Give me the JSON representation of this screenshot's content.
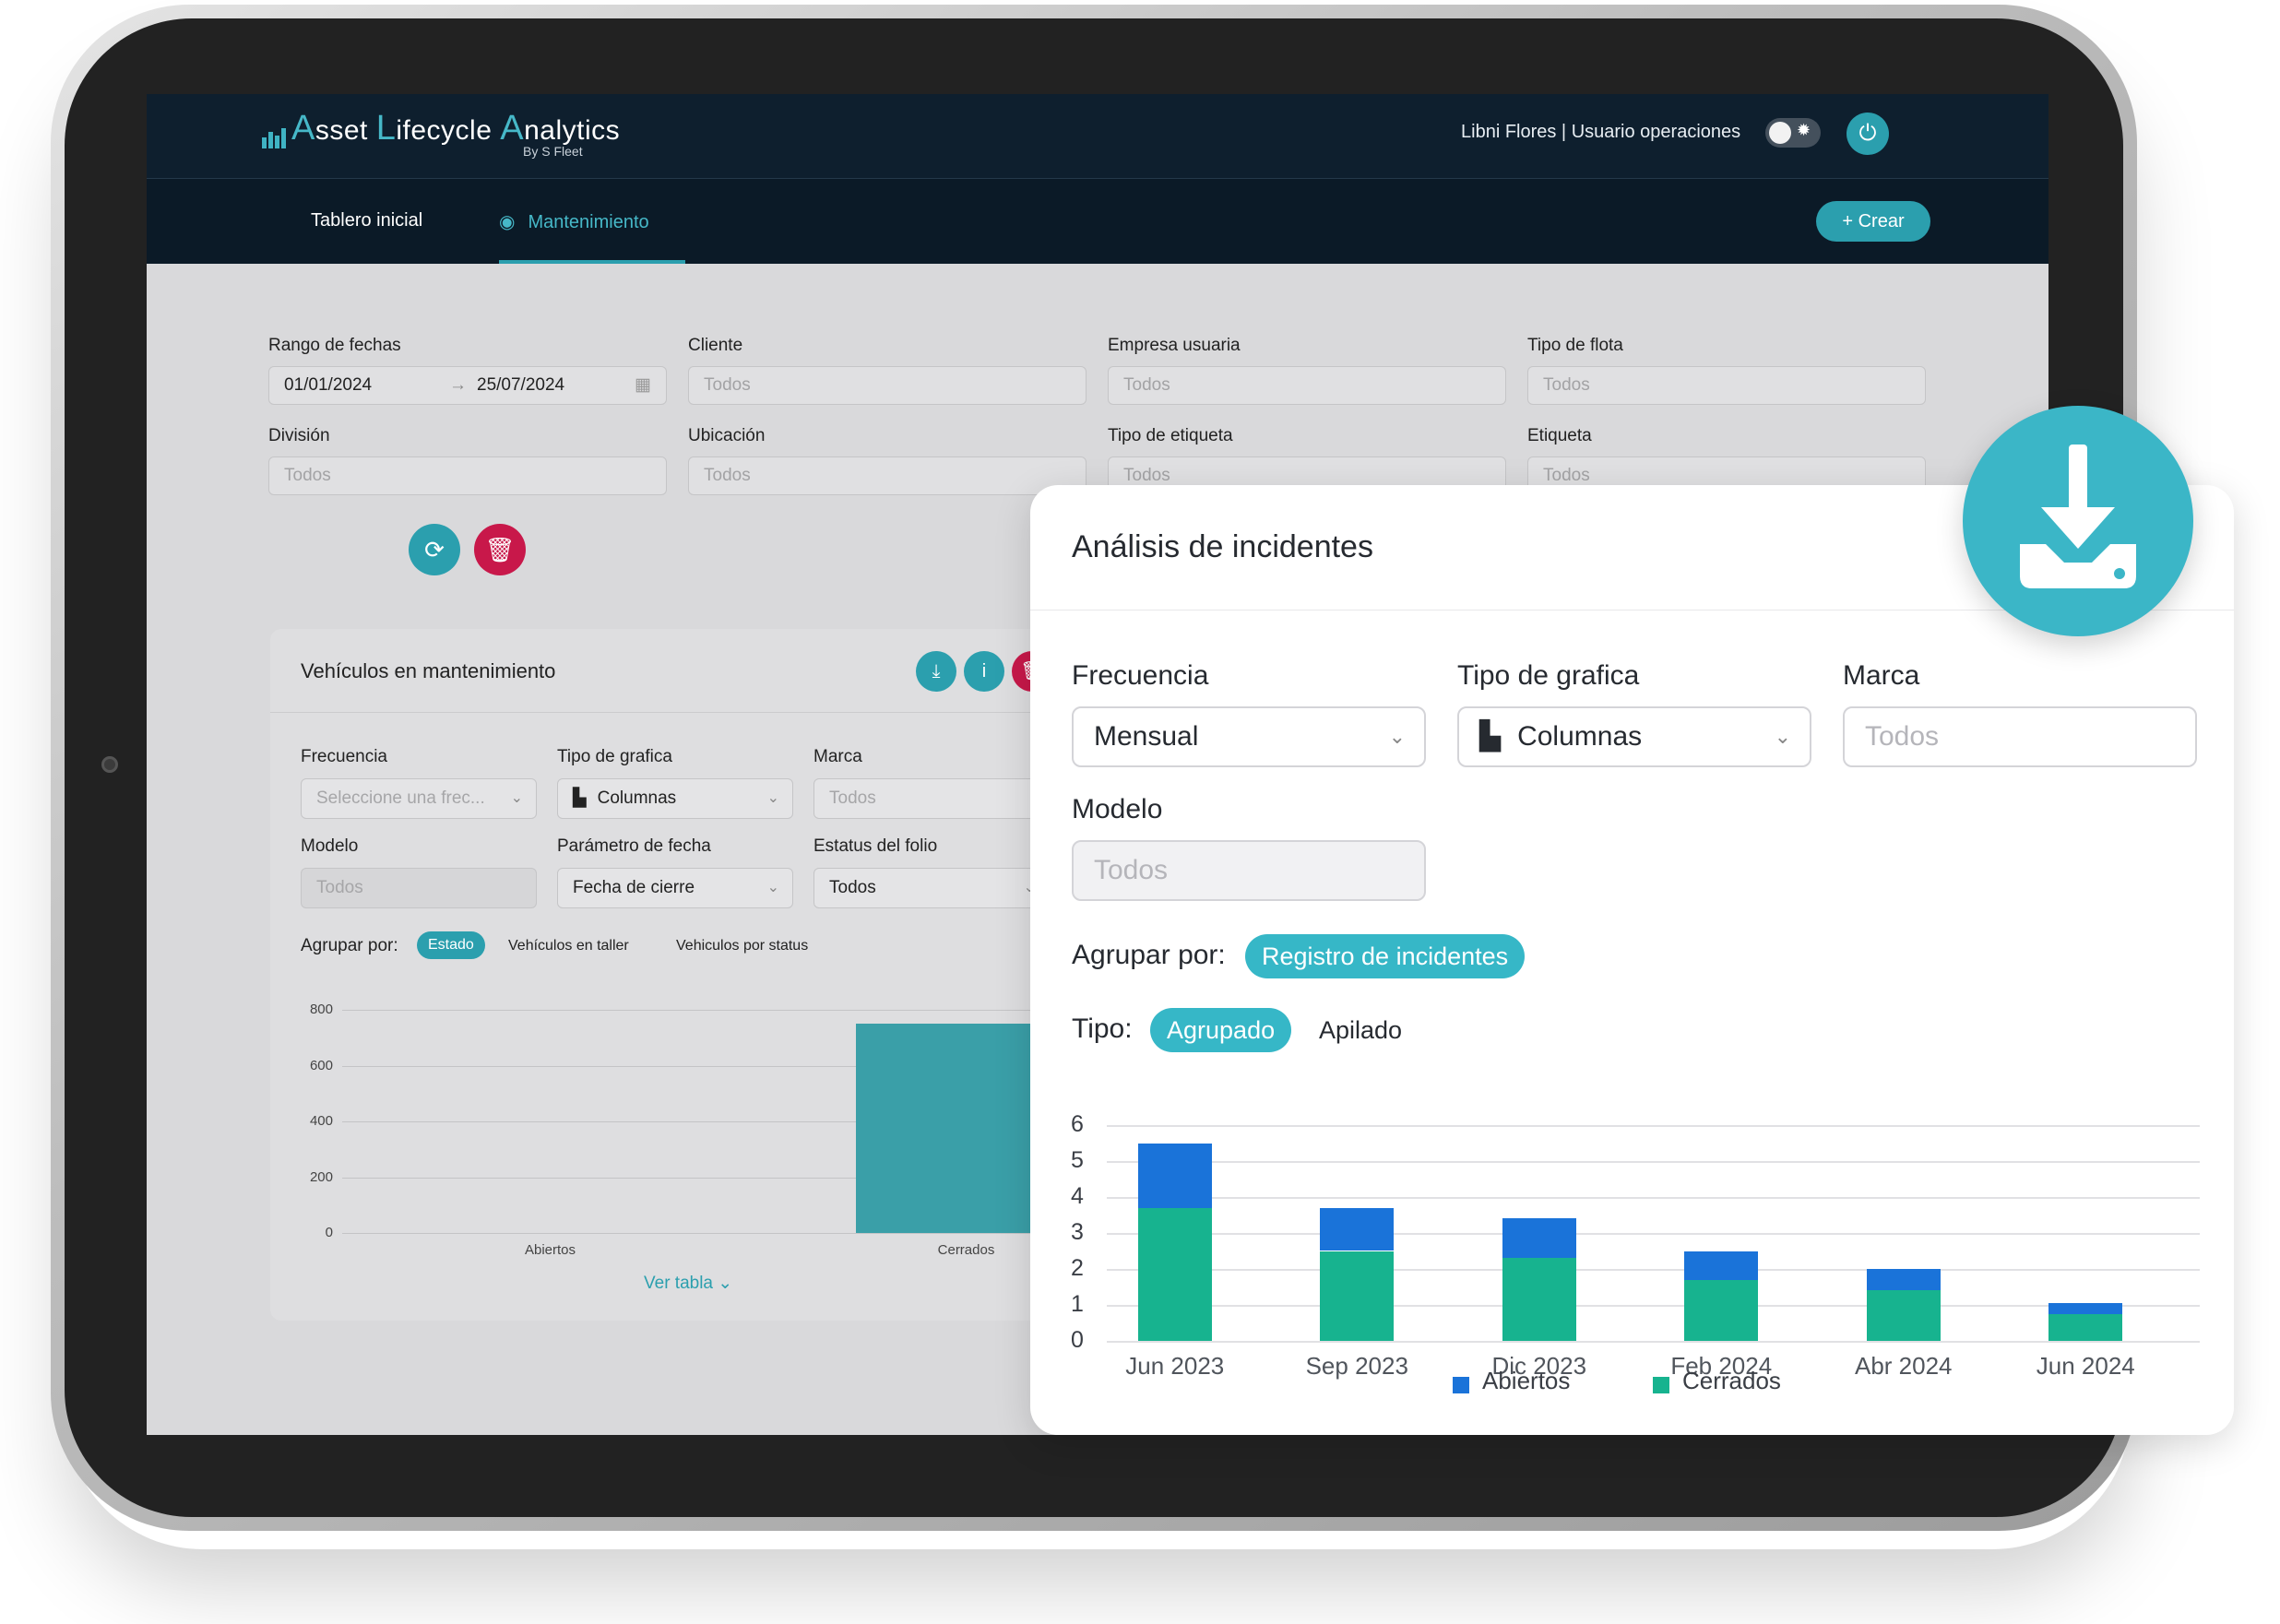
{
  "header": {
    "logo_letter_a": "A",
    "logo_word_a": "sset ",
    "logo_letter_l": "L",
    "logo_word_l": "ifecycle ",
    "logo_letter_an": "A",
    "logo_word_an": "nalytics",
    "logo_sub": "By S Fleet",
    "user": "Libni Flores | Usuario operaciones"
  },
  "nav": {
    "tabs": [
      {
        "label": "Tablero inicial",
        "active": false
      },
      {
        "label": "Mantenimiento",
        "active": true
      }
    ],
    "create_label": "+  Crear"
  },
  "filters": {
    "rango_label": "Rango de fechas",
    "fecha_inicio": "01/01/2024",
    "fecha_fin": "25/07/2024",
    "cliente_label": "Cliente",
    "empresa_label": "Empresa usuaria",
    "tipo_flota_label": "Tipo de flota",
    "division_label": "División",
    "ubicacion_label": "Ubicación",
    "tipo_etiqueta_label": "Tipo de etiqueta",
    "etiqueta_label": "Etiqueta",
    "placeholder": "Todos"
  },
  "card": {
    "title": "Vehículos en mantenimiento",
    "frecuencia_label": "Frecuencia",
    "frecuencia_placeholder": "Seleccione una frec...",
    "tipo_grafica_label": "Tipo de grafica",
    "tipo_grafica_value": "Columnas",
    "marca_label": "Marca",
    "marca_placeholder": "Todos",
    "modelo_label": "Modelo",
    "modelo_placeholder": "Todos",
    "parametro_label": "Parámetro de fecha",
    "parametro_value": "Fecha de cierre",
    "estatus_label": "Estatus del folio",
    "estatus_value": "Todos",
    "agrupar_label": "Agrupar por:",
    "agrupar_options": [
      "Estado",
      "Vehículos en taller",
      "Vehiculos por status"
    ],
    "ver_tabla": "Ver tabla",
    "chart_ticks": [
      "800",
      "600",
      "400",
      "200",
      "0"
    ],
    "chart_categories": [
      "Abiertos",
      "Cerrados"
    ]
  },
  "panel": {
    "title": "Análisis de incidentes",
    "frecuencia_label": "Frecuencia",
    "frecuencia_value": "Mensual",
    "tipo_grafica_label": "Tipo de grafica",
    "tipo_grafica_value": "Columnas",
    "marca_label": "Marca",
    "marca_placeholder": "Todos",
    "modelo_label": "Modelo",
    "modelo_placeholder": "Todos",
    "agrupar_label": "Agrupar por:",
    "agrupar_value": "Registro de incidentes",
    "tipo_label": "Tipo:",
    "tipo_options": [
      "Agrupado",
      "Apilado"
    ]
  },
  "colors": {
    "accent": "#2b9fae",
    "danger": "#c8184a",
    "abiertos": "#1a73d9",
    "cerrados": "#17b38f"
  },
  "chart_data": [
    {
      "type": "bar",
      "categories": [
        "Abiertos",
        "Cerrados"
      ],
      "values": [
        0,
        750
      ],
      "ylim": [
        0,
        800
      ],
      "yticks": [
        0,
        200,
        400,
        600,
        800
      ]
    },
    {
      "type": "bar",
      "stacked": true,
      "categories": [
        "Jun 2023",
        "Sep 2023",
        "Dic 2023",
        "Feb 2024",
        "Abr 2024",
        "Jun 2024"
      ],
      "series": [
        {
          "name": "Cerrados",
          "values": [
            3.7,
            2.5,
            2.3,
            1.7,
            1.4,
            0.75
          ]
        },
        {
          "name": "Abiertos",
          "values": [
            1.8,
            1.2,
            1.1,
            0.8,
            0.6,
            0.3
          ]
        }
      ],
      "ylim": [
        0,
        6
      ],
      "yticks": [
        0,
        1,
        2,
        3,
        4,
        5,
        6
      ],
      "legend": "bottom"
    }
  ]
}
